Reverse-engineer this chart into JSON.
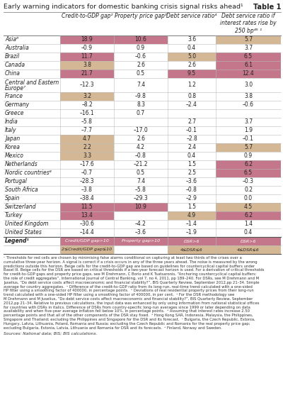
{
  "title": "Early warning indicators for domestic banking crisis signal risks ahead",
  "title_sup": "1",
  "table_label": "Table 1",
  "col_headers": [
    "Credit-to-GDP gap²",
    "Property price gap³",
    "Debt service ratio⁴",
    "Debt service ratio if\ninterest rates rise by\n250 bp⁴⁵ ¹"
  ],
  "rows": [
    {
      "country": "Asia⁶",
      "vals": [
        "18.9",
        "10.6",
        "3.6",
        "5.7"
      ],
      "colors": [
        "red",
        "red",
        null,
        "beige"
      ]
    },
    {
      "country": "Australia",
      "vals": [
        "–0.9",
        "0.9",
        "0.4",
        "3.7"
      ],
      "colors": [
        null,
        null,
        null,
        null
      ]
    },
    {
      "country": "Brazil",
      "vals": [
        "11.7",
        "–0.6",
        "5.0",
        "6.5"
      ],
      "colors": [
        "red",
        null,
        "beige",
        "red"
      ]
    },
    {
      "country": "Canada",
      "vals": [
        "3.8",
        "2.6",
        "2.6",
        "6.1"
      ],
      "colors": [
        "beige",
        null,
        null,
        "red"
      ]
    },
    {
      "country": "China",
      "vals": [
        "21.7",
        "0.5",
        "9.5",
        "12.4"
      ],
      "colors": [
        "red",
        null,
        "red",
        "red"
      ]
    },
    {
      "country": "Central and Eastern\nEurope⁷",
      "vals": [
        "–12.3",
        "7.4",
        "1.2",
        "3.0"
      ],
      "colors": [
        null,
        null,
        null,
        null
      ]
    },
    {
      "country": "France",
      "vals": [
        "3.2",
        "–9.8",
        "0.8",
        "3.8"
      ],
      "colors": [
        "beige",
        null,
        null,
        null
      ]
    },
    {
      "country": "Germany",
      "vals": [
        "–8.2",
        "8.3",
        "–2.4",
        "–0.6"
      ],
      "colors": [
        null,
        null,
        null,
        null
      ]
    },
    {
      "country": "Greece",
      "vals": [
        "–16.1",
        "0.7",
        "",
        ""
      ],
      "colors": [
        null,
        null,
        null,
        null
      ]
    },
    {
      "country": "India",
      "vals": [
        "–5.8",
        "",
        "2.7",
        "3.7"
      ],
      "colors": [
        null,
        null,
        null,
        null
      ]
    },
    {
      "country": "Italy",
      "vals": [
        "–7.7",
        "–17.0",
        "–0.1",
        "1.9"
      ],
      "colors": [
        null,
        null,
        null,
        null
      ]
    },
    {
      "country": "Japan",
      "vals": [
        "4.7",
        "2.6",
        "–2.8",
        "–0.1"
      ],
      "colors": [
        "beige",
        null,
        null,
        null
      ]
    },
    {
      "country": "Korea",
      "vals": [
        "2.2",
        "4.2",
        "2.4",
        "5.7"
      ],
      "colors": [
        "beige",
        null,
        null,
        "beige"
      ]
    },
    {
      "country": "Mexico",
      "vals": [
        "3.3",
        "–0.8",
        "0.4",
        "0.9"
      ],
      "colors": [
        "beige",
        null,
        null,
        null
      ]
    },
    {
      "country": "Netherlands",
      "vals": [
        "–17.6",
        "–21.2",
        "1.5",
        "6.2"
      ],
      "colors": [
        null,
        null,
        null,
        "red"
      ]
    },
    {
      "country": "Nordic countries⁸",
      "vals": [
        "–0.7",
        "0.5",
        "2.5",
        "6.5"
      ],
      "colors": [
        null,
        null,
        null,
        "red"
      ]
    },
    {
      "country": "Portugal",
      "vals": [
        "–28.3",
        "7.4",
        "–3.6",
        "–0.3"
      ],
      "colors": [
        null,
        null,
        null,
        null
      ]
    },
    {
      "country": "South Africa",
      "vals": [
        "–3.8",
        "–5.8",
        "–0.8",
        "0.2"
      ],
      "colors": [
        null,
        null,
        null,
        null
      ]
    },
    {
      "country": "Spain",
      "vals": [
        "–38.4",
        "–29.3",
        "–2.9",
        "0.0"
      ],
      "colors": [
        null,
        null,
        null,
        null
      ]
    },
    {
      "country": "Switzerland",
      "vals": [
        "11.5",
        "10.9",
        "1.5",
        "4.5"
      ],
      "colors": [
        "red",
        "red",
        null,
        "beige"
      ]
    },
    {
      "country": "Turkey",
      "vals": [
        "13.4",
        "",
        "4.9",
        "6.2"
      ],
      "colors": [
        "red",
        null,
        "beige",
        "red"
      ]
    },
    {
      "country": "United Kingdom",
      "vals": [
        "–30.6",
        "–4.2",
        "–1.4",
        "1.4"
      ],
      "colors": [
        null,
        null,
        null,
        null
      ]
    },
    {
      "country": "United States",
      "vals": [
        "–14.4",
        "–3.6",
        "–1.9",
        "0.4"
      ],
      "colors": [
        null,
        null,
        null,
        null
      ]
    }
  ],
  "legend1_entries": [
    "Credit/GDP gap>10",
    "Property gap>10",
    "DSR>6",
    "DSR>6"
  ],
  "legend1_colors": [
    "red",
    "red",
    "red",
    "red"
  ],
  "legend2_entries": [
    "2≤Credit/GDP gap≤10",
    "",
    "4≤DSR≤6",
    "4≤DSR≤6"
  ],
  "legend2_colors": [
    "beige",
    null,
    "beige",
    "beige"
  ],
  "footnote_lines": [
    "¹ Thresholds for red cells are chosen by minimising false alarms conditional on capturing at least two thirds of the crises over a",
    "cumulative three-year horizon. A signal is correct if a crisis occurs in any of the three years ahead. The noise is measured by the wrong",
    "predictions outside this horizon. Beige cells for the credit-to-GDP gap are based on guidelines for countercyclical capital buffers under",
    "Basel III. Beige cells for the DSR are based on critical thresholds if a two-year forecast horizon is used. For a derivation of critical thresholds",
    "for credit-to-GDP gaps and property price gaps, see M Drehmann, C Borio and K Tsatsaronis, “Anchoring countercyclical capital buffers:",
    "the role of credit aggregates”, International Journal of Central Banking, vol 7, no 4, 2011, pp 189–240. For DSRs, see M Drehmann and M",
    "Juselius, “Do debt service costs affect macroeconomic and financial stability?”, BIS Quarterly Review, September 2012,pp 21–34. Simple",
    "average for country aggregates.  ² Difference of the credit-to-GDP ratio from its long-run, real-time trend calculated with a one-sided",
    "HP filter using a smoothing factor of 400000, in percentage points.  ³ Deviations of real residential property prices from their long-run",
    "trend calculated with a one-sided HP filter using a smoothing factor of 400000, in per cent.  ⁴ For the DSR methodology see",
    "M Drehmann and M Juselius, “Do debt service costs affect macroeconomic and financial stability?”, BIS Quarterly Review, September",
    "2012,pp 21–34. Relative to previous calculations, the input data was enhanced by only using information from national statistical offices",
    "for countries with DSRs in italics. Difference of DSRs from country-specific long-run averages since 1999 or later depending on data",
    "availability and when five-year average inflation fell below 10%, in percentage points.  ⁵ Assuming that interest rates increase 2.50",
    "percentage points and that all of the other components of the DSR stay fixed.  ⁶ Hong Kong SAR, Indonesia, Malaysia, the Philippines,",
    "Singapore and Thailand; excluding the Philippines and Singapore for the DSR and its forecast.  ⁷ Bulgaria, the Czech Republic, Estonia,",
    "Hungary, Latvia, Lithuania, Poland, Romania and Russia; excluding the Czech Republic and Romania for the real property price gap;",
    "excluding Bulgaria, Estonia, Latvia, Lithuania and Romania for DSR and its forecasts.  ⁸ Finland, Norway and Sweden."
  ],
  "sources": "Sources: National data; BIS; BIS calculations.",
  "red_color": "#c4768a",
  "beige_color": "#d4b896",
  "border_color": "#bbbbbb",
  "text_color": "#222222",
  "header_line_color": "#888888"
}
